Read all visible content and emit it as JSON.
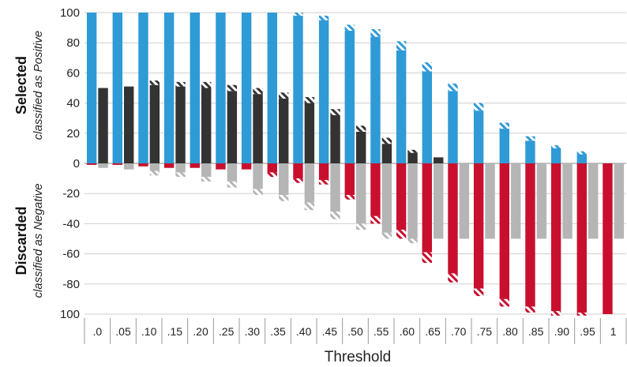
{
  "colors": {
    "blue": "#2e9ad6",
    "dark": "#333333",
    "red": "#c8102e",
    "gray": "#b5b5b5",
    "grid": "#cfcfcf",
    "baseline": "#888888"
  },
  "chart_data": {
    "type": "bar",
    "xlabel": "Threshold",
    "top_label": {
      "main": "Selected",
      "sub": "classified as Positive"
    },
    "bottom_label": {
      "main": "Discarded",
      "sub": "classified as Negative"
    },
    "y_ticks": [
      {
        "value": 100,
        "label": "100"
      },
      {
        "value": 80,
        "label": "80"
      },
      {
        "value": 60,
        "label": "60"
      },
      {
        "value": 40,
        "label": "40"
      },
      {
        "value": 20,
        "label": "20"
      },
      {
        "value": 0,
        "label": "0"
      },
      {
        "value": -20,
        "label": "-20"
      },
      {
        "value": -40,
        "label": "-40"
      },
      {
        "value": -60,
        "label": "-60"
      },
      {
        "value": -80,
        "label": "-80"
      },
      {
        "value": -100,
        "label": "100"
      }
    ],
    "ylim": [
      -100,
      100
    ],
    "grid": true,
    "categories": [
      ".0",
      ".05",
      ".10",
      ".15",
      ".20",
      ".25",
      ".30",
      ".35",
      ".40",
      ".45",
      ".50",
      ".55",
      ".60",
      ".65",
      ".70",
      ".75",
      ".80",
      ".85",
      ".90",
      ".95",
      "1"
    ],
    "series": [
      {
        "color_key": "blue",
        "values": [
          100,
          100,
          100,
          100,
          100,
          100,
          100,
          100,
          98,
          95,
          88,
          84,
          75,
          61,
          48,
          35,
          23,
          15,
          10,
          6,
          0
        ],
        "uncertainty": [
          0,
          0,
          0,
          0,
          0,
          0,
          0,
          0,
          2,
          3,
          4,
          5,
          6,
          6,
          5,
          5,
          4,
          3,
          2,
          2,
          0
        ]
      },
      {
        "color_key": "dark",
        "values": [
          50,
          51,
          52,
          51,
          50,
          48,
          46,
          43,
          40,
          32,
          21,
          13,
          7,
          4,
          0,
          0,
          0,
          0,
          0,
          0,
          0
        ],
        "uncertainty": [
          0,
          0,
          3,
          3,
          4,
          4,
          4,
          4,
          4,
          4,
          4,
          4,
          2,
          0,
          0,
          0,
          0,
          0,
          0,
          0,
          0
        ]
      },
      {
        "color_key": "red",
        "values": [
          -1,
          -1,
          -2,
          -3,
          -3,
          -4,
          -4,
          -6,
          -10,
          -11,
          -21,
          -35,
          -44,
          -59,
          -73,
          -83,
          -90,
          -95,
          -98,
          -99,
          -100
        ],
        "uncertainty": [
          0,
          0,
          0,
          0,
          0,
          0,
          0,
          3,
          3,
          3,
          3,
          5,
          6,
          7,
          6,
          5,
          5,
          4,
          3,
          2,
          0
        ]
      },
      {
        "color_key": "gray",
        "values": [
          -3,
          -4,
          -5,
          -6,
          -9,
          -12,
          -17,
          -21,
          -26,
          -32,
          -40,
          -46,
          -50,
          -50,
          -50,
          -50,
          -50,
          -50,
          -50,
          -50,
          -50
        ],
        "uncertainty": [
          0,
          0,
          3,
          3,
          3,
          4,
          4,
          4,
          5,
          5,
          4,
          4,
          3,
          0,
          0,
          0,
          0,
          0,
          0,
          0,
          0
        ]
      }
    ]
  }
}
